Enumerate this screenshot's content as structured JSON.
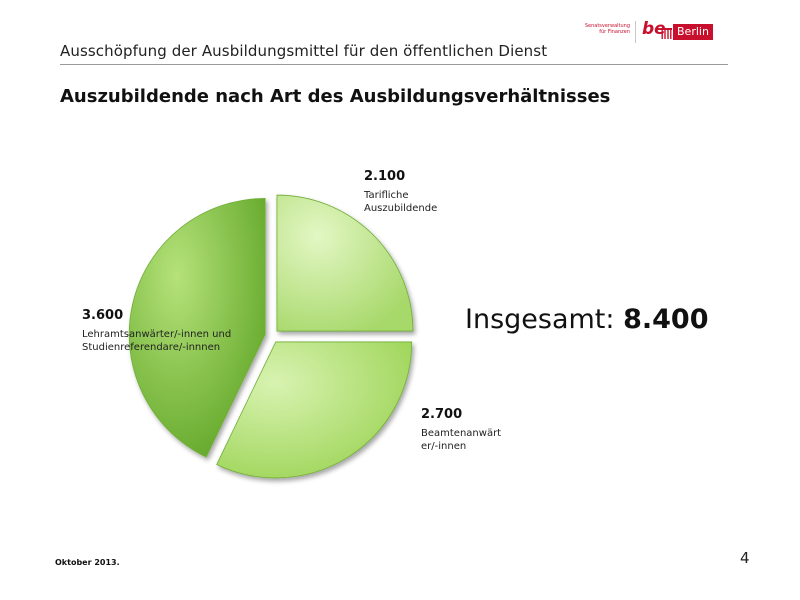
{
  "header": {
    "title": "Ausschöpfung der Ausbildungsmittel für den öffentlichen Dienst"
  },
  "logo": {
    "department_line1": "Senatsverwaltung",
    "department_line2": "für Finanzen",
    "be_mark": "be",
    "city": "Berlin",
    "brand_color": "#c8102e"
  },
  "slide": {
    "title": "Auszubildende nach Art des Ausbildungsverhältnisses",
    "total_label": "Insgesamt:",
    "total_value": "8.400"
  },
  "chart_data": {
    "type": "pie",
    "slices": [
      {
        "value": 2100,
        "value_label": "2.100",
        "label": "Tarifliche Auszubildende",
        "label_lines": [
          "Tarifliche",
          "Auszubildende"
        ],
        "color": "#c3e88f"
      },
      {
        "value": 2700,
        "value_label": "2.700",
        "label": "Beamtenanwärter/-innen",
        "label_lines": [
          "Beamtenanwärt",
          "er/-innen"
        ],
        "color": "#b5e273"
      },
      {
        "value": 3600,
        "value_label": "3.600",
        "label": "Lehramtsanwärter/-innen und Studienreferendare/-innnen",
        "label_lines": [
          "Lehramtsanwärter/-innen und",
          "Studienreferendare/-innnen"
        ],
        "color": "#8ccf3e"
      }
    ],
    "exploded": true,
    "start_angle": "12 o'clock, clockwise"
  },
  "footer": {
    "date": "Oktober 2013.",
    "page_number": "4"
  }
}
